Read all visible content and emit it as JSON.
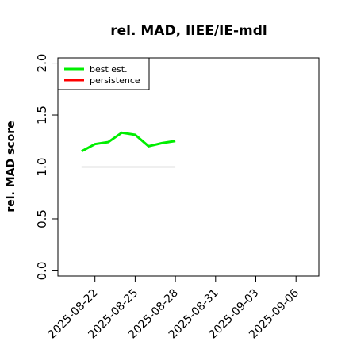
{
  "chart_data": {
    "type": "line",
    "title": "rel. MAD, IIEE/IE-mdl",
    "ylabel": "rel. MAD score",
    "x": [
      "2025-08-21",
      "2025-08-22",
      "2025-08-23",
      "2025-08-24",
      "2025-08-25",
      "2025-08-26",
      "2025-08-27",
      "2025-08-28"
    ],
    "series": [
      {
        "name": "best est.",
        "color": "#00ee00",
        "values": [
          1.15,
          1.22,
          1.24,
          1.33,
          1.31,
          1.2,
          1.23,
          1.25
        ]
      },
      {
        "name": "persistence",
        "color": "#ff0000",
        "values": [
          null,
          null,
          null,
          null,
          null,
          null,
          null,
          null
        ]
      }
    ],
    "reference_line": {
      "y": 1,
      "color": "#808080",
      "x": [
        "2025-08-21",
        "2025-08-28"
      ]
    },
    "xlim": [
      "2025-08-19",
      "2025-09-08"
    ],
    "xticks": [
      "2025-08-22",
      "2025-08-25",
      "2025-08-28",
      "2025-08-31",
      "2025-09-03",
      "2025-09-06"
    ],
    "ylim": [
      -0.05,
      2.05
    ],
    "yticks": [
      {
        "value": 0,
        "label": "0.0"
      },
      0.5,
      {
        "value": 1,
        "label": "1.0"
      },
      1.5,
      {
        "value": 2,
        "label": "2.0"
      }
    ],
    "legend": "top-left"
  }
}
